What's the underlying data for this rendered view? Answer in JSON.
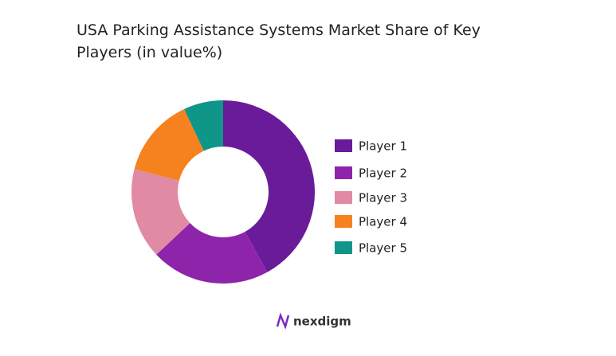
{
  "chart_data": {
    "type": "donut",
    "title": "USA Parking Assistance Systems Market Share of Key Players (in value%)",
    "categories": [
      "Player 1",
      "Player 2",
      "Player 3",
      "Player 4",
      "Player 5"
    ],
    "values": [
      42,
      21,
      16,
      14,
      7
    ],
    "colors": [
      "#6a1b9a",
      "#8e24aa",
      "#e08ba3",
      "#f5821f",
      "#0f9688"
    ],
    "legend": "right"
  },
  "brand": "nexdigm"
}
